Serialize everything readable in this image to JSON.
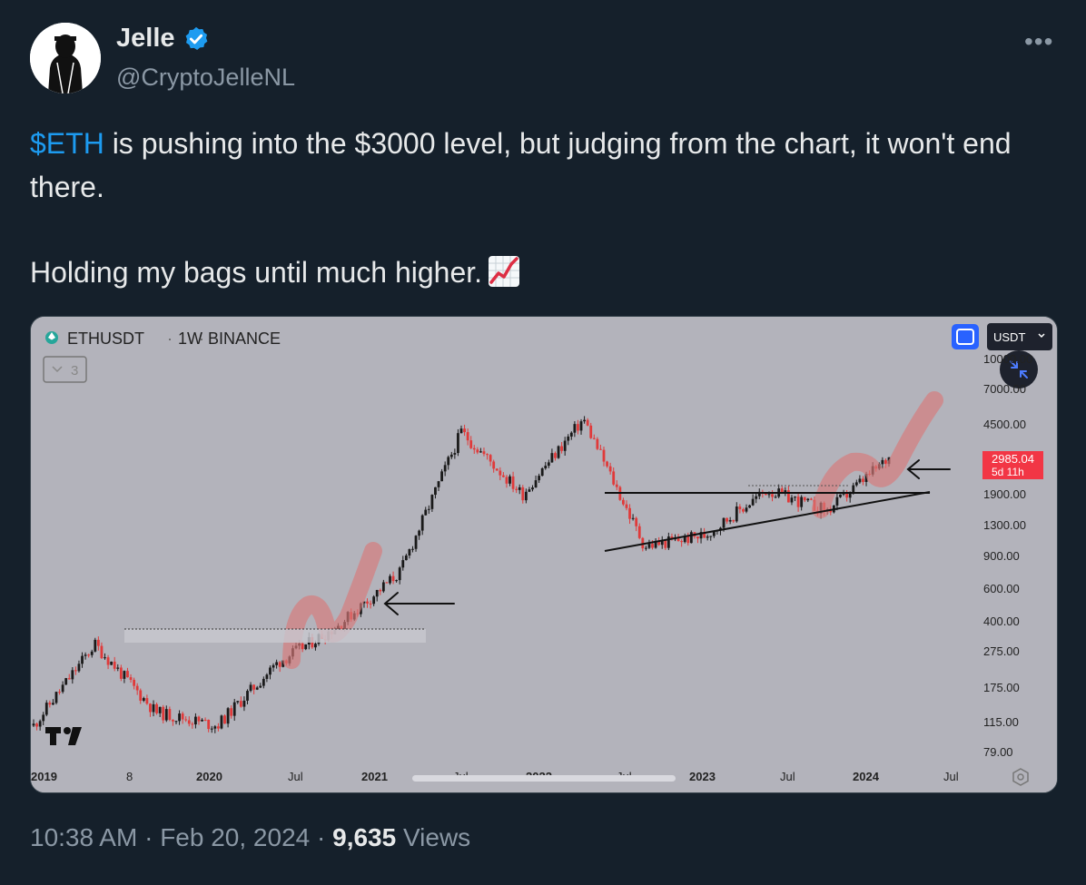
{
  "author": {
    "name": "Jelle",
    "handle": "@CryptoJelleNL"
  },
  "tweet": {
    "cashtag": "$ETH",
    "line1_rest": " is pushing into the $3000 level, but judging from the chart, it won't end there.",
    "line2": "Holding my bags until much higher.",
    "emoji": "chart-increasing-icon"
  },
  "chart": {
    "symbol": "ETHUSDT",
    "interval": "1W",
    "exchange": "BINANCE",
    "indicator_count": "3",
    "currency_button": "USDT",
    "current_price": "2985.04",
    "countdown": "5d 11h",
    "y_ticks": [
      "10000.00",
      "7000.00",
      "4500.00",
      "1900.00",
      "1300.00",
      "900.00",
      "600.00",
      "400.00",
      "275.00",
      "175.00",
      "115.00",
      "79.00"
    ],
    "x_ticks": [
      "2019",
      "8",
      "2020",
      "Jul",
      "2021",
      "Jul",
      "2022",
      "Jul",
      "2023",
      "Jul",
      "2024",
      "Jul"
    ],
    "colors": {
      "up": "#1a1a1a",
      "down": "#e03a3a",
      "background": "#b3b3bb",
      "price_badge": "#f23645",
      "highlight": "#d97a7a"
    }
  },
  "chart_data": {
    "type": "candlestick",
    "symbol": "ETHUSDT",
    "interval": "1W",
    "scale": "log",
    "ylim": [
      79,
      10000
    ],
    "series": [
      {
        "name": "ETHUSDT",
        "x": [
          "2019-01",
          "2019-06",
          "2019-12",
          "2020-03",
          "2020-07",
          "2020-09",
          "2020-12",
          "2021-05",
          "2021-07",
          "2021-11",
          "2022-06",
          "2022-11",
          "2023-04",
          "2023-10",
          "2024-02"
        ],
        "values": [
          110,
          300,
          130,
          110,
          240,
          380,
          730,
          4100,
          1900,
          4800,
          1000,
          1150,
          2000,
          1550,
          2985
        ]
      }
    ]
  },
  "footer": {
    "time": "10:38 AM",
    "sep1": " · ",
    "date": "Feb 20, 2024",
    "sep2": " · ",
    "views_count": "9,635",
    "views_label": " Views"
  }
}
